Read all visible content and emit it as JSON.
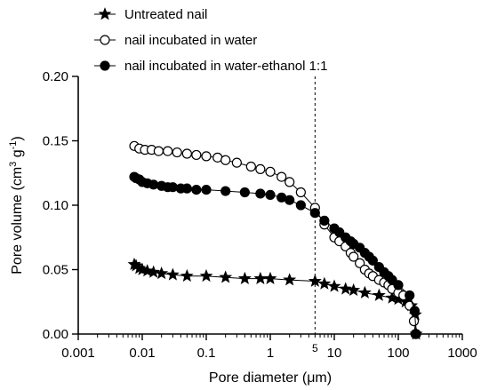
{
  "chart_data": {
    "type": "scatter",
    "xscale": "log",
    "xlim": [
      0.001,
      1000
    ],
    "ylim": [
      0,
      0.2
    ],
    "xlabel": "Pore diameter (μm)",
    "ylabel_parts": [
      "Pore volume (cm",
      "3",
      " g",
      "-1",
      ")"
    ],
    "xticks": [
      {
        "value": 0.001,
        "label": "0.001"
      },
      {
        "value": 0.01,
        "label": "0.01"
      },
      {
        "value": 0.1,
        "label": "0.1"
      },
      {
        "value": 1,
        "label": "1"
      },
      {
        "value": 10,
        "label": "10"
      },
      {
        "value": 100,
        "label": "100"
      },
      {
        "value": 1000,
        "label": "1000"
      }
    ],
    "yticks": [
      {
        "value": 0,
        "label": "0.00"
      },
      {
        "value": 0.05,
        "label": "0.05"
      },
      {
        "value": 0.1,
        "label": "0.10"
      },
      {
        "value": 0.15,
        "label": "0.15"
      },
      {
        "value": 0.2,
        "label": "0.20"
      }
    ],
    "annotation": {
      "x": 5,
      "label": "5",
      "style": "dashed-vertical-line"
    },
    "legend_position": "top",
    "series": [
      {
        "name": "Untreated nail",
        "marker": "star",
        "fill": "#000000",
        "x": [
          0.0075,
          0.008,
          0.009,
          0.01,
          0.012,
          0.015,
          0.02,
          0.03,
          0.05,
          0.1,
          0.2,
          0.4,
          0.7,
          1,
          2,
          5,
          7,
          10,
          15,
          20,
          30,
          50,
          80,
          100,
          130,
          160,
          185,
          190
        ],
        "y": [
          0.054,
          0.053,
          0.051,
          0.05,
          0.049,
          0.048,
          0.047,
          0.046,
          0.045,
          0.045,
          0.044,
          0.043,
          0.043,
          0.043,
          0.042,
          0.041,
          0.039,
          0.037,
          0.035,
          0.034,
          0.032,
          0.03,
          0.028,
          0.027,
          0.025,
          0.022,
          0.015,
          0.0
        ]
      },
      {
        "name": "nail incubated in water",
        "marker": "circle-open",
        "fill": "#ffffff",
        "x": [
          0.0075,
          0.009,
          0.011,
          0.014,
          0.018,
          0.025,
          0.035,
          0.05,
          0.07,
          0.1,
          0.15,
          0.2,
          0.3,
          0.5,
          0.7,
          1,
          1.5,
          2,
          3,
          5,
          7,
          10,
          12,
          15,
          18,
          20,
          25,
          30,
          35,
          40,
          50,
          60,
          70,
          80,
          100,
          120,
          150,
          175,
          185
        ],
        "y": [
          0.146,
          0.144,
          0.143,
          0.143,
          0.142,
          0.142,
          0.141,
          0.14,
          0.139,
          0.138,
          0.137,
          0.135,
          0.133,
          0.13,
          0.128,
          0.126,
          0.122,
          0.118,
          0.11,
          0.098,
          0.085,
          0.075,
          0.072,
          0.068,
          0.063,
          0.06,
          0.055,
          0.05,
          0.047,
          0.045,
          0.042,
          0.04,
          0.038,
          0.035,
          0.032,
          0.03,
          0.022,
          0.01,
          0.0
        ]
      },
      {
        "name": "nail incubated in water-ethanol 1:1",
        "marker": "circle-filled",
        "fill": "#000000",
        "x": [
          0.0075,
          0.008,
          0.009,
          0.01,
          0.012,
          0.015,
          0.02,
          0.025,
          0.03,
          0.04,
          0.05,
          0.07,
          0.1,
          0.2,
          0.4,
          0.7,
          1,
          1.5,
          2,
          3,
          5,
          7,
          10,
          12,
          15,
          18,
          20,
          25,
          30,
          35,
          40,
          50,
          60,
          70,
          80,
          100,
          150,
          180,
          190
        ],
        "y": [
          0.122,
          0.121,
          0.12,
          0.118,
          0.117,
          0.116,
          0.115,
          0.114,
          0.114,
          0.113,
          0.113,
          0.112,
          0.112,
          0.111,
          0.11,
          0.109,
          0.108,
          0.106,
          0.104,
          0.1,
          0.094,
          0.088,
          0.082,
          0.079,
          0.075,
          0.072,
          0.07,
          0.067,
          0.063,
          0.06,
          0.057,
          0.052,
          0.048,
          0.045,
          0.042,
          0.038,
          0.03,
          0.018,
          0.0
        ]
      }
    ]
  }
}
